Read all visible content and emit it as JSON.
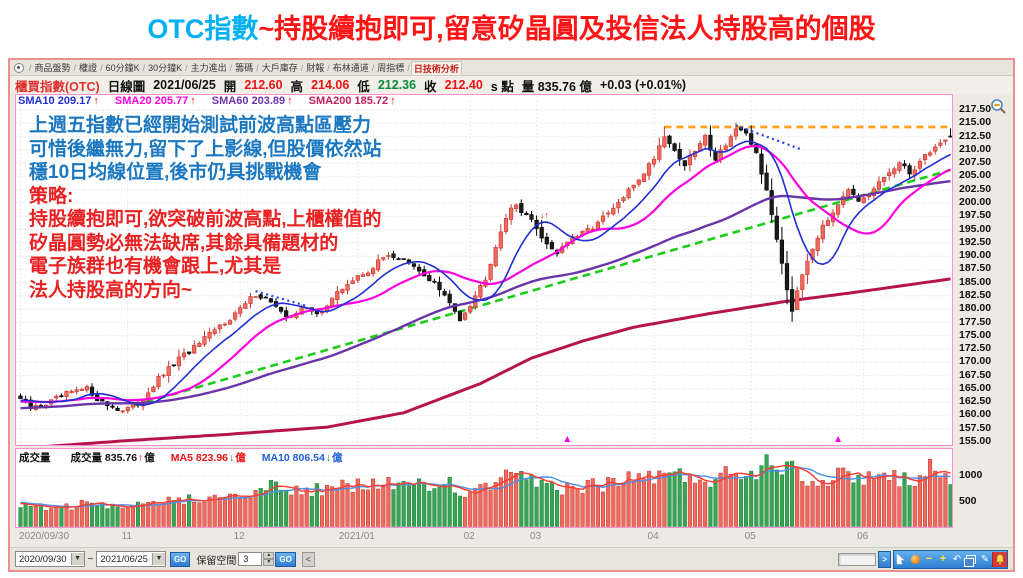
{
  "title": {
    "highlight": "OTC指數",
    "rest": "~持股續抱即可,留意矽晶圓及投信法人持股高的個股"
  },
  "tab_bar": {
    "tabs": [
      "商品盤勢",
      "權證",
      "60分鐘K",
      "30分鐘K",
      "主力進出",
      "籌碼",
      "大戶庫存",
      "財報",
      "布林通道",
      "周指標",
      "日技術分析"
    ],
    "active": "日技術分析"
  },
  "info_bar": {
    "segments": [
      {
        "text": "櫃買指數(OTC)",
        "color": "#e03030"
      },
      {
        "text": "日線圖",
        "color": "#111111"
      },
      {
        "text": "2021/06/25",
        "color": "#111111"
      },
      {
        "text": "開",
        "color": "#111111"
      },
      {
        "text": "212.60",
        "color": "#ee1111"
      },
      {
        "text": "高",
        "color": "#111111"
      },
      {
        "text": "214.06",
        "color": "#ee1111"
      },
      {
        "text": "低",
        "color": "#111111"
      },
      {
        "text": "212.36",
        "color": "#0b8a3c"
      },
      {
        "text": "收",
        "color": "#111111"
      },
      {
        "text": "212.40",
        "color": "#ee1111"
      },
      {
        "text": "s 點",
        "color": "#111111"
      },
      {
        "text": "量 835.76 億",
        "color": "#111111"
      },
      {
        "text": "+0.03 (+0.01%)",
        "color": "#111111"
      }
    ]
  },
  "sma_row": [
    {
      "label": "SMA10",
      "value": "209.17",
      "arrow": "↑",
      "color": "#1f2fd4"
    },
    {
      "label": "SMA20",
      "value": "205.77",
      "arrow": "↑",
      "color": "#ff00de"
    },
    {
      "label": "SMA60",
      "value": "203.89",
      "arrow": "↑",
      "color": "#6a35a8"
    },
    {
      "label": "SMA200",
      "value": "185.72",
      "arrow": "↑",
      "color": "#c02060"
    }
  ],
  "annotation": {
    "lines": [
      {
        "text": "上週五指數已經開始測試前波高點區壓力",
        "color": "#1b78c0"
      },
      {
        "text": "可惜後繼無力,留下了上影線,但股價依然站",
        "color": "#1b78c0"
      },
      {
        "text": "穩10日均線位置,後市仍具挑戰機會",
        "color": "#1b78c0"
      },
      {
        "text": "策略:",
        "color": "#e82222"
      },
      {
        "text": "持股續抱即可,欲突破前波高點,上櫃權值的",
        "color": "#e82222"
      },
      {
        "text": "矽晶圓勢必無法缺席,其餘具備題材的",
        "color": "#e82222"
      },
      {
        "text": "電子族群也有機會跟上,尤其是",
        "color": "#e82222"
      },
      {
        "text": "法人持股高的方向~",
        "color": "#e82222"
      }
    ]
  },
  "volume_header": {
    "segments": [
      {
        "text": "成交量",
        "color": "#111111",
        "gap": 20
      },
      {
        "text": "成交量 835.76",
        "color": "#111111",
        "gap": 1
      },
      {
        "text": "↑",
        "color": "#ee1111",
        "gap": 1
      },
      {
        "text": "億",
        "color": "#111111",
        "gap": 16
      },
      {
        "text": "MA5 823.96",
        "color": "#ee1111",
        "gap": 1
      },
      {
        "text": "↓",
        "color": "#0b8a3c",
        "gap": 1
      },
      {
        "text": "億",
        "color": "#ee1111",
        "gap": 16
      },
      {
        "text": "MA10 806.54",
        "color": "#1f5fd4",
        "gap": 1
      },
      {
        "text": "↓",
        "color": "#0b8a3c",
        "gap": 1
      },
      {
        "text": "億",
        "color": "#1f5fd4",
        "gap": 0
      }
    ]
  },
  "toolbar": {
    "date_from": "2020/09/30",
    "range_tilde": "~",
    "date_to": "2021/06/25",
    "go_label": "GO",
    "reserve_label": "保留空間",
    "reserve_value": "3",
    "back_label": "<",
    "forward_label": ">"
  },
  "icons": {
    "tab_leading": "radio-icon",
    "chart_corner": "zoom-out-icon",
    "right_strip": [
      "cursor-icon",
      "chart-ball-icon",
      "minus-icon",
      "plus-icon",
      "undo-icon",
      "window-restore-icon",
      "pen-icon",
      "bell-icon"
    ]
  },
  "chart_data": {
    "type": "candlestick",
    "instrument": "櫃買指數(OTC)",
    "period": "日線圖",
    "date": "2021/06/25",
    "ohlc_today": {
      "open": 212.6,
      "high": 214.06,
      "low": 212.36,
      "close": 212.4,
      "change": "+0.03",
      "change_pct": "+0.01%",
      "volume_yi": 835.76
    },
    "indicators": {
      "sma10": 209.17,
      "sma20": 205.77,
      "sma60": 203.89,
      "sma200": 185.72
    },
    "volume_ma": {
      "ma5": 823.96,
      "ma10": 806.54
    },
    "y_axis": {
      "min": 155.0,
      "max": 217.5,
      "step": 2.5,
      "tick_labels": [
        "217.50",
        "215.00",
        "212.50",
        "210.00",
        "207.50",
        "205.00",
        "202.50",
        "200.00",
        "197.50",
        "195.00",
        "192.50",
        "190.00",
        "187.50",
        "185.00",
        "182.50",
        "180.00",
        "177.50",
        "175.00",
        "172.50",
        "170.00",
        "167.50",
        "165.00",
        "162.50",
        "160.00",
        "157.50",
        "155.00"
      ]
    },
    "volume_axis": {
      "ticks": [
        1000,
        500
      ]
    },
    "x_axis": {
      "days_total": 183,
      "labels": [
        {
          "text": "2020/09/30",
          "day": 0
        },
        {
          "text": "11",
          "day": 21
        },
        {
          "text": "12",
          "day": 43
        },
        {
          "text": "2021/01",
          "day": 66
        },
        {
          "text": "02",
          "day": 88
        },
        {
          "text": "03",
          "day": 101
        },
        {
          "text": "04",
          "day": 124
        },
        {
          "text": "05",
          "day": 143
        },
        {
          "text": "06",
          "day": 165
        }
      ]
    },
    "close_anchors": [
      [
        0,
        163.2
      ],
      [
        2,
        161.3
      ],
      [
        5,
        162.2
      ],
      [
        9,
        164.0
      ],
      [
        13,
        165.0
      ],
      [
        16,
        162.4
      ],
      [
        20,
        160.9
      ],
      [
        23,
        162.2
      ],
      [
        27,
        166.8
      ],
      [
        31,
        170.6
      ],
      [
        35,
        173.5
      ],
      [
        39,
        176.8
      ],
      [
        43,
        180.0
      ],
      [
        46,
        182.9
      ],
      [
        49,
        181.6
      ],
      [
        52,
        178.1
      ],
      [
        55,
        180.4
      ],
      [
        58,
        179.0
      ],
      [
        61,
        182.0
      ],
      [
        64,
        184.8
      ],
      [
        68,
        187.2
      ],
      [
        72,
        190.4
      ],
      [
        75,
        189.2
      ],
      [
        78,
        187.0
      ],
      [
        81,
        185.0
      ],
      [
        84,
        181.0
      ],
      [
        86,
        178.3
      ],
      [
        88,
        181.0
      ],
      [
        91,
        186.0
      ],
      [
        93,
        192.0
      ],
      [
        95,
        197.5
      ],
      [
        97,
        199.6
      ],
      [
        99,
        197.8
      ],
      [
        101,
        195.2
      ],
      [
        103,
        192.3
      ],
      [
        105,
        190.7
      ],
      [
        107,
        192.8
      ],
      [
        110,
        194.2
      ],
      [
        113,
        196.3
      ],
      [
        116,
        198.8
      ],
      [
        119,
        202.2
      ],
      [
        122,
        205.8
      ],
      [
        124,
        208.6
      ],
      [
        126,
        212.9
      ],
      [
        128,
        209.8
      ],
      [
        130,
        207.2
      ],
      [
        132,
        209.8
      ],
      [
        134,
        212.4
      ],
      [
        136,
        208.4
      ],
      [
        138,
        211.2
      ],
      [
        140,
        213.9
      ],
      [
        142,
        212.6
      ],
      [
        144,
        209.5
      ],
      [
        146,
        202.0
      ],
      [
        148,
        193.5
      ],
      [
        150,
        184.0
      ],
      [
        151,
        179.8
      ],
      [
        152,
        184.0
      ],
      [
        154,
        189.5
      ],
      [
        156,
        193.8
      ],
      [
        158,
        196.8
      ],
      [
        160,
        200.2
      ],
      [
        162,
        202.8
      ],
      [
        164,
        199.8
      ],
      [
        166,
        201.2
      ],
      [
        168,
        203.8
      ],
      [
        170,
        205.8
      ],
      [
        172,
        207.3
      ],
      [
        174,
        205.6
      ],
      [
        176,
        207.8
      ],
      [
        178,
        209.8
      ],
      [
        180,
        211.3
      ],
      [
        182,
        212.4
      ]
    ],
    "volume_anchors": [
      [
        0,
        420
      ],
      [
        6,
        380
      ],
      [
        12,
        450
      ],
      [
        20,
        360
      ],
      [
        26,
        480
      ],
      [
        32,
        560
      ],
      [
        38,
        620
      ],
      [
        44,
        700
      ],
      [
        50,
        780
      ],
      [
        56,
        720
      ],
      [
        62,
        760
      ],
      [
        68,
        820
      ],
      [
        72,
        880
      ],
      [
        78,
        800
      ],
      [
        84,
        850
      ],
      [
        88,
        600
      ],
      [
        93,
        900
      ],
      [
        96,
        950
      ],
      [
        100,
        880
      ],
      [
        104,
        800
      ],
      [
        108,
        780
      ],
      [
        112,
        820
      ],
      [
        116,
        880
      ],
      [
        120,
        950
      ],
      [
        124,
        1020
      ],
      [
        128,
        980
      ],
      [
        132,
        1000
      ],
      [
        136,
        950
      ],
      [
        140,
        1080
      ],
      [
        144,
        1150
      ],
      [
        147,
        1300
      ],
      [
        151,
        1250
      ],
      [
        154,
        1000
      ],
      [
        158,
        900
      ],
      [
        162,
        1050
      ],
      [
        166,
        980
      ],
      [
        170,
        1020
      ],
      [
        174,
        900
      ],
      [
        177,
        1150
      ],
      [
        180,
        1200
      ],
      [
        182,
        836
      ]
    ],
    "sma200_anchors": [
      [
        0,
        153.8
      ],
      [
        20,
        155.2
      ],
      [
        40,
        156.4
      ],
      [
        60,
        157.8
      ],
      [
        75,
        160.5
      ],
      [
        90,
        166.0
      ],
      [
        100,
        170.8
      ],
      [
        110,
        174.0
      ],
      [
        120,
        176.6
      ],
      [
        135,
        179.2
      ],
      [
        150,
        181.5
      ],
      [
        165,
        183.4
      ],
      [
        182,
        185.7
      ]
    ],
    "overlays": {
      "trendline_green_dashed": {
        "from": [
          22,
          161.8
        ],
        "to": [
          182,
          206.2
        ],
        "color": "#19cd19"
      },
      "resistance_orange_dashed": {
        "from_day": 126,
        "to_day": 182,
        "price": 214.3,
        "color": "#ffa21f"
      },
      "prev_high_blue_dotted": [
        {
          "from": [
            46,
            183.4
          ],
          "to": [
            56,
            180.6
          ]
        },
        {
          "from": [
            140,
            214.6
          ],
          "to": [
            153,
            210.0
          ]
        }
      ],
      "buy_marker_days": [
        107,
        160
      ],
      "signal": {
        "day": 103,
        "price": 197.2,
        "text": "↓↑"
      }
    },
    "colors": {
      "up": "#f1685e",
      "up_border": "#c9352b",
      "down": "#1c1c1c",
      "down_border": "#000000",
      "vol_up": "#ef6a5e",
      "vol_up_border": "#c0392b",
      "vol_down": "#3aa455",
      "vol_down_border": "#1e7e3a",
      "sma10": "#1f2fd4",
      "sma20": "#ff00de",
      "sma60": "#6a35a8",
      "sma200": "#b5144e",
      "vol_ma5": "#ff3b30",
      "vol_ma10": "#4a8fe8",
      "blue_dotted": "#2244ee",
      "marker": "#ff00de"
    }
  }
}
